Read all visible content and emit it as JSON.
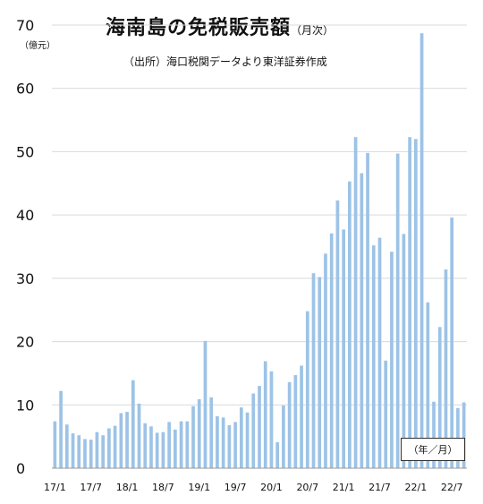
{
  "chart_data": {
    "type": "bar",
    "title": "海南島の免税販売額",
    "title_suffix": "（月次）",
    "subtitle": "（出所）海口税関データより東洋証券作成",
    "y_unit": "（億元）",
    "x_unit": "（年／月）",
    "ylim": [
      0,
      70
    ],
    "y_ticks": [
      0,
      10,
      20,
      30,
      40,
      50,
      60,
      70
    ],
    "grid": true,
    "bar_color": "#9dc3e6",
    "grid_color": "#d9d9d9",
    "x_tick_labels": [
      {
        "index": 0,
        "label": "17/1"
      },
      {
        "index": 6,
        "label": "17/7"
      },
      {
        "index": 12,
        "label": "18/1"
      },
      {
        "index": 18,
        "label": "18/7"
      },
      {
        "index": 24,
        "label": "19/1"
      },
      {
        "index": 30,
        "label": "19/7"
      },
      {
        "index": 36,
        "label": "20/1"
      },
      {
        "index": 42,
        "label": "20/7"
      },
      {
        "index": 48,
        "label": "21/1"
      },
      {
        "index": 54,
        "label": "21/7"
      },
      {
        "index": 60,
        "label": "22/1"
      },
      {
        "index": 66,
        "label": "22/7"
      }
    ],
    "values": [
      7.4,
      12.2,
      6.9,
      5.5,
      5.2,
      4.6,
      4.5,
      5.7,
      5.2,
      6.3,
      6.7,
      8.7,
      8.9,
      13.9,
      10.2,
      7.1,
      6.6,
      5.6,
      5.7,
      7.3,
      6.1,
      7.4,
      7.4,
      9.8,
      10.9,
      20.1,
      11.2,
      8.2,
      8.0,
      6.8,
      7.3,
      9.6,
      8.8,
      11.8,
      13.0,
      16.9,
      15.3,
      4.1,
      9.9,
      13.6,
      14.7,
      16.2,
      24.8,
      30.8,
      30.2,
      33.9,
      37.1,
      42.3,
      37.7,
      45.3,
      52.3,
      46.6,
      49.8,
      35.2,
      36.4,
      17.0,
      34.2,
      49.7,
      37.0,
      52.3,
      52.0,
      68.7,
      26.2,
      10.5,
      22.3,
      31.4,
      39.6,
      9.5,
      10.4
    ]
  }
}
